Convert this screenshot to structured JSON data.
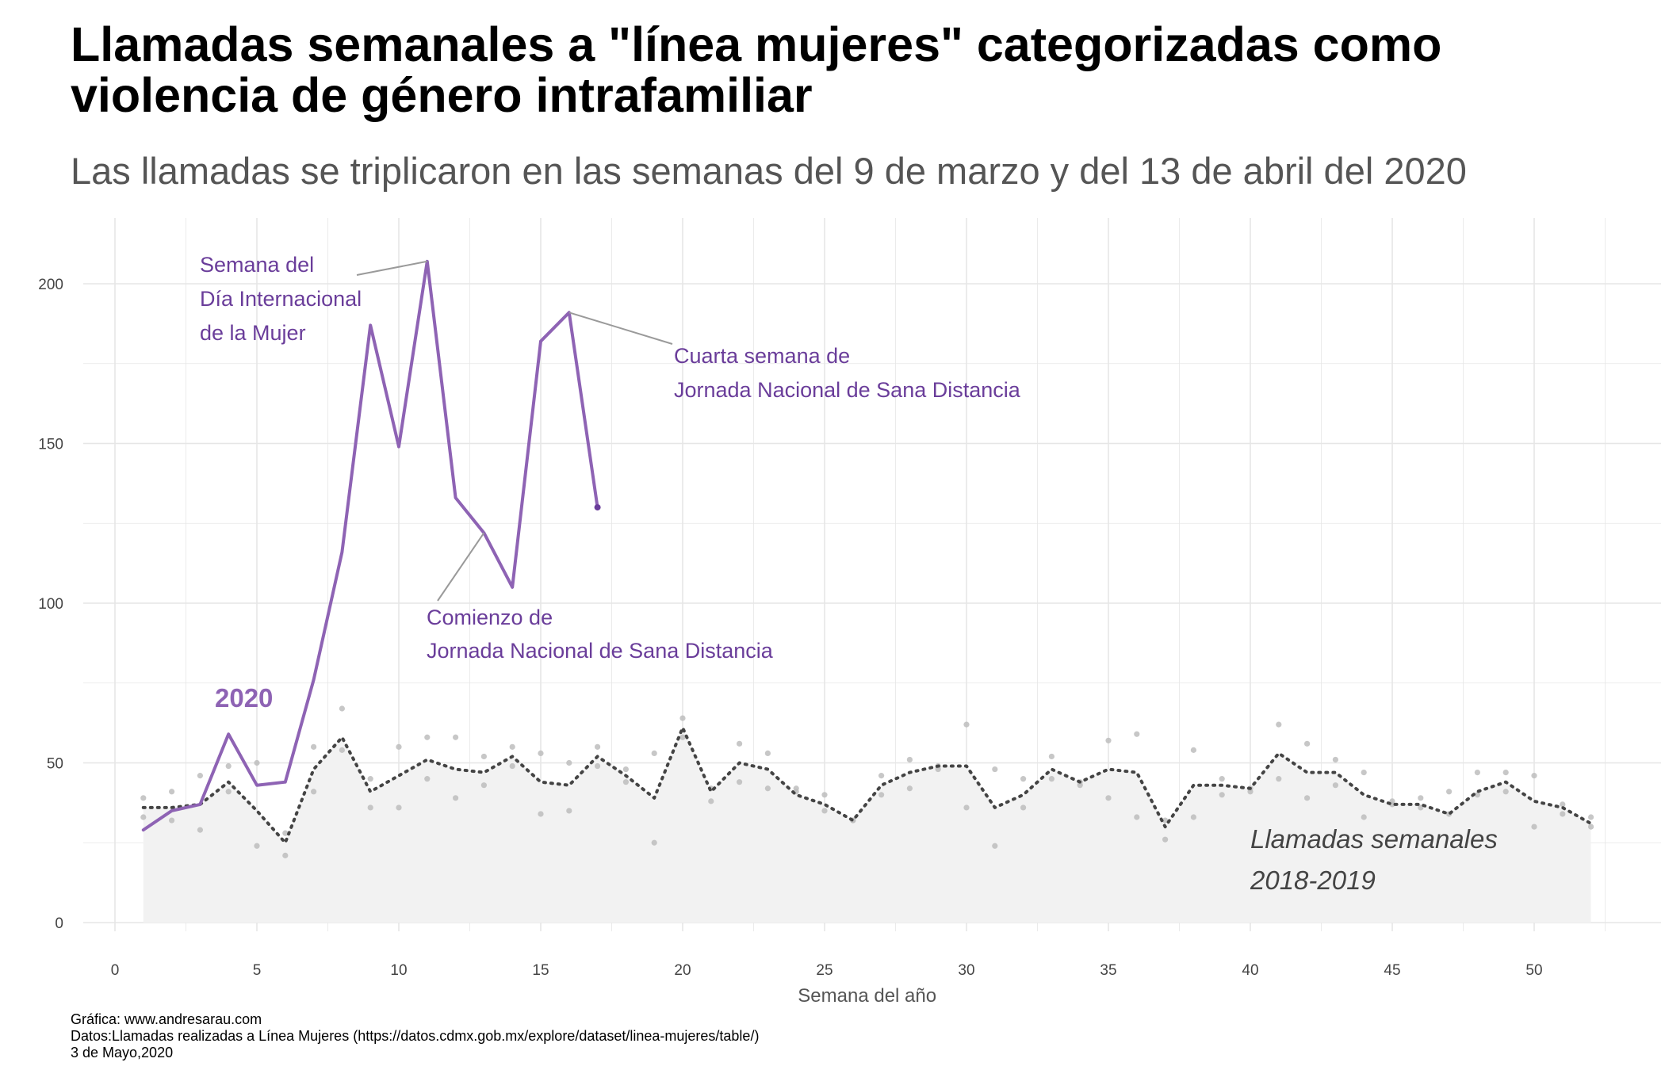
{
  "title": "Llamadas semanales a \"línea mujeres\" categorizadas como violencia de género intrafamiliar",
  "subtitle": "Las llamadas se triplicaron en las semanas del 9 de marzo y del 13 de abril del 2020",
  "caption": {
    "line1": "Gráfica: www.andresarau.com",
    "line2": "Datos:Llamadas realizadas a Línea Mujeres (https://datos.cdmx.gob.mx/explore/dataset/linea-mujeres/table/)",
    "line3": "3 de Mayo,2020"
  },
  "colors": {
    "line_2020": "#8e63b4",
    "annotation_text": "#6a3d9a",
    "avg_line": "#444444",
    "area_fill": "#f2f2f2",
    "points": "#bdbdbd",
    "grid": "#e6e6e6"
  },
  "chart_data": {
    "type": "line",
    "title": "Llamadas semanales a \"línea mujeres\" categorizadas como violencia de género intrafamiliar",
    "subtitle": "Las llamadas se triplicaron en las semanas del 9 de marzo y del 13 de abril del 2020",
    "xlabel": "Semana del año",
    "ylabel": "",
    "xlim": [
      0,
      53
    ],
    "ylim": [
      0,
      210
    ],
    "x_ticks": [
      0,
      5,
      10,
      15,
      20,
      25,
      30,
      35,
      40,
      45,
      50
    ],
    "y_ticks": [
      0,
      50,
      100,
      150,
      200
    ],
    "grid": true,
    "legend": "none",
    "series": [
      {
        "name": "2020",
        "style": "solid-line",
        "x": [
          1,
          2,
          3,
          4,
          5,
          6,
          7,
          8,
          9,
          10,
          11,
          12,
          13,
          14,
          15,
          16,
          17
        ],
        "values": [
          29,
          35,
          37,
          59,
          43,
          44,
          76,
          116,
          187,
          149,
          207,
          133,
          122,
          105,
          182,
          191,
          130
        ]
      },
      {
        "name": "Llamadas semanales 2018-2019",
        "style": "dotted-line-with-area",
        "x": [
          1,
          2,
          3,
          4,
          5,
          6,
          7,
          8,
          9,
          10,
          11,
          12,
          13,
          14,
          15,
          16,
          17,
          18,
          19,
          20,
          21,
          22,
          23,
          24,
          25,
          26,
          27,
          28,
          29,
          30,
          31,
          32,
          33,
          34,
          35,
          36,
          37,
          38,
          39,
          40,
          41,
          42,
          43,
          44,
          45,
          46,
          47,
          48,
          49,
          50,
          51,
          52
        ],
        "values": [
          36,
          36,
          37,
          44,
          35,
          25,
          48,
          58,
          41,
          46,
          51,
          48,
          47,
          52,
          44,
          43,
          52,
          46,
          39,
          61,
          41,
          50,
          48,
          40,
          37,
          32,
          43,
          47,
          49,
          49,
          36,
          40,
          48,
          44,
          48,
          47,
          30,
          43,
          43,
          42,
          53,
          47,
          47,
          40,
          37,
          37,
          34,
          41,
          44,
          38,
          36,
          31
        ]
      },
      {
        "name": "2018",
        "style": "points",
        "x": [
          1,
          2,
          3,
          4,
          5,
          6,
          7,
          8,
          9,
          10,
          11,
          12,
          13,
          14,
          15,
          16,
          17,
          18,
          19,
          20,
          21,
          22,
          23,
          24,
          25,
          26,
          27,
          28,
          29,
          30,
          31,
          32,
          33,
          34,
          35,
          36,
          37,
          38,
          39,
          40,
          41,
          42,
          43,
          44,
          45,
          46,
          47,
          48,
          49,
          50,
          51,
          52
        ],
        "values": [
          39,
          41,
          46,
          49,
          50,
          21,
          55,
          67,
          45,
          55,
          58,
          58,
          52,
          55,
          53,
          50,
          55,
          48,
          53,
          64,
          42,
          56,
          53,
          42,
          40,
          32,
          46,
          51,
          49,
          62,
          48,
          45,
          52,
          44,
          57,
          59,
          32,
          54,
          45,
          42,
          62,
          56,
          51,
          47,
          38,
          39,
          41,
          47,
          47,
          46,
          37,
          33
        ]
      },
      {
        "name": "2019",
        "style": "points",
        "x": [
          1,
          2,
          3,
          4,
          5,
          6,
          7,
          8,
          9,
          10,
          11,
          12,
          13,
          14,
          15,
          16,
          17,
          18,
          19,
          20,
          21,
          22,
          23,
          24,
          25,
          26,
          27,
          28,
          29,
          30,
          31,
          32,
          33,
          34,
          35,
          36,
          37,
          38,
          39,
          40,
          41,
          42,
          43,
          44,
          45,
          46,
          47,
          48,
          49,
          50,
          51,
          52
        ],
        "values": [
          33,
          32,
          29,
          41,
          24,
          28,
          41,
          54,
          36,
          36,
          45,
          39,
          43,
          49,
          34,
          35,
          49,
          44,
          25,
          58,
          38,
          44,
          42,
          41,
          35,
          32,
          40,
          42,
          48,
          36,
          24,
          36,
          45,
          43,
          39,
          33,
          26,
          33,
          40,
          41,
          45,
          39,
          43,
          33,
          37,
          36,
          34,
          40,
          41,
          30,
          34,
          30
        ]
      }
    ],
    "annotations": [
      {
        "lines": [
          "Semana del",
          "Día Internacional",
          "de la Mujer"
        ],
        "x": 11,
        "y": 207
      },
      {
        "lines": [
          "Cuarta semana de",
          "Jornada Nacional de Sana Distancia"
        ],
        "x": 16,
        "y": 191
      },
      {
        "lines": [
          "Comienzo de",
          "Jornada Nacional de Sana Distancia"
        ],
        "x": 13,
        "y": 122
      },
      {
        "lines": [
          "2020"
        ],
        "x": 4.5,
        "y": 67
      },
      {
        "lines": [
          "Llamadas semanales",
          "2018-2019"
        ],
        "x": 40,
        "y": 25
      }
    ]
  }
}
